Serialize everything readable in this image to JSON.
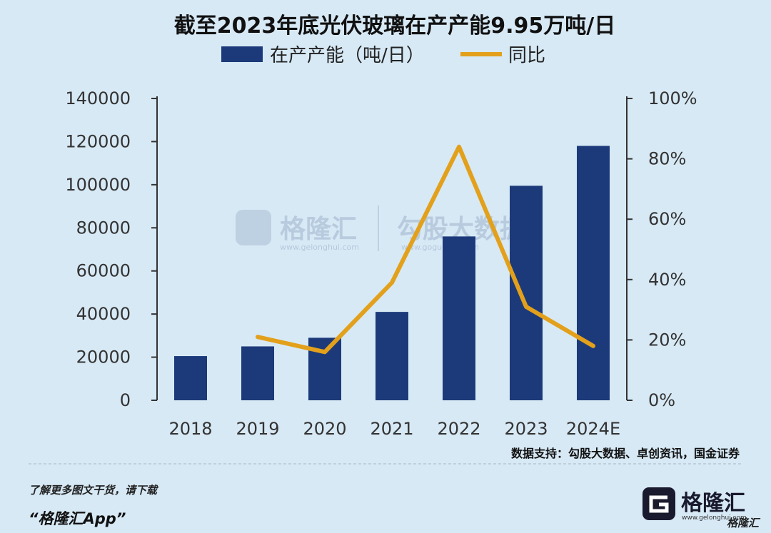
{
  "chart_data": {
    "type": "bar",
    "title": "截至2023年底光伏玻璃在产产能9.95万吨/日",
    "categories": [
      "2018",
      "2019",
      "2020",
      "2021",
      "2022",
      "2023",
      "2024E"
    ],
    "series": [
      {
        "name": "在产产能（吨/日）",
        "type": "bar",
        "axis": "left",
        "values": [
          20500,
          25000,
          29000,
          41000,
          76000,
          99500,
          118000
        ],
        "color": "#1c3a7a"
      },
      {
        "name": "同比",
        "type": "line",
        "axis": "right",
        "values": [
          null,
          21,
          16,
          39,
          84,
          31,
          18
        ],
        "color": "#e3a01b"
      }
    ],
    "y_left": {
      "min": 0,
      "max": 140000,
      "ticks": [
        "0",
        "20000",
        "40000",
        "60000",
        "80000",
        "100000",
        "120000",
        "140000"
      ]
    },
    "y_right": {
      "min": 0,
      "max": 100,
      "ticks": [
        "0%",
        "20%",
        "40%",
        "60%",
        "80%",
        "100%"
      ]
    },
    "legend_position": "top-center",
    "grid": false
  },
  "source": "数据支持：勾股大数据、卓创资讯，国金证券",
  "footer": {
    "note": "了解更多图文干货，请下载",
    "app": "“格隆汇App”"
  },
  "watermark": {
    "brand": "格隆汇",
    "brand_url": "www.gelonghui.com",
    "partner": "勾股大数据",
    "partner_url": "www.gogudata.com"
  },
  "logo": {
    "text": "格隆汇",
    "url": "www.gelonghui.com",
    "badge": "格隆汇"
  }
}
